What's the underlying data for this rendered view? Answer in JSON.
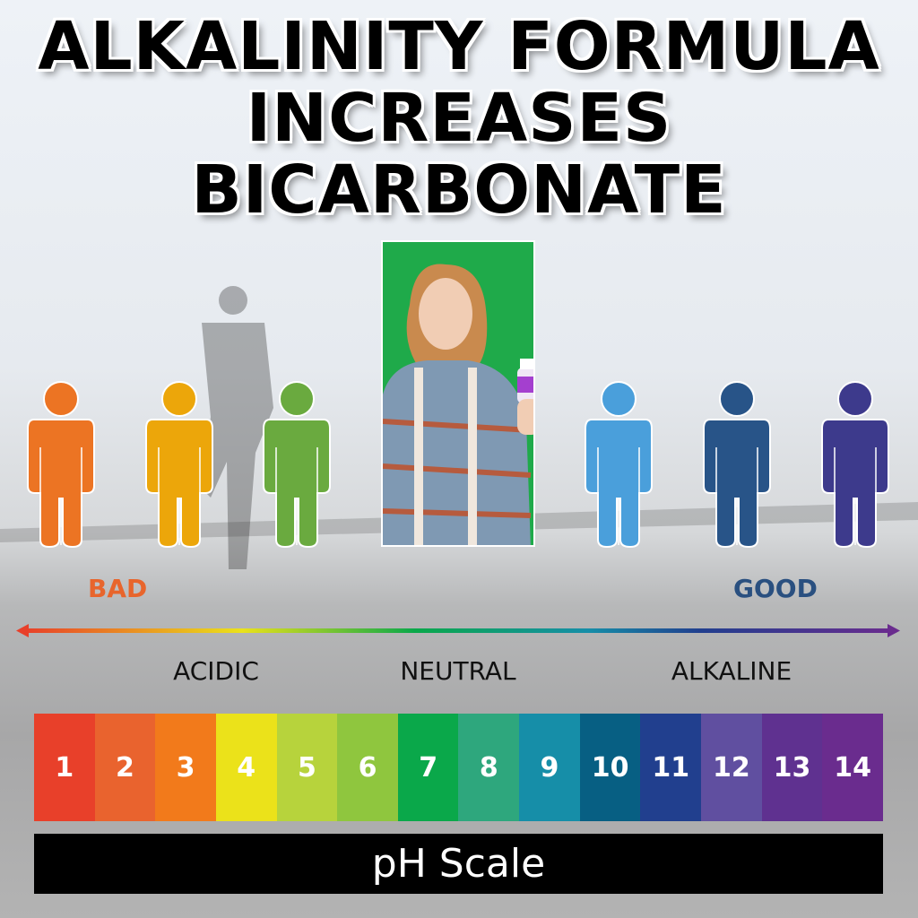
{
  "title": {
    "line1": "ALKALINITY FORMULA",
    "line2": "INCREASES",
    "line3": "BICARBONATE"
  },
  "figures": [
    {
      "color": "#ec7423"
    },
    {
      "color": "#eca60a"
    },
    {
      "color": "#6aaa3f"
    },
    {
      "color": "#4a9fdb"
    },
    {
      "color": "#285488"
    },
    {
      "color": "#3d3a8c"
    }
  ],
  "labels": {
    "bad": "BAD",
    "good": "GOOD",
    "bad_color": "#e8652c",
    "good_color": "#2a5080"
  },
  "zones": {
    "acidic": "ACIDIC",
    "neutral": "NEUTRAL",
    "alkaline": "ALKALINE"
  },
  "ph_scale": {
    "title": "pH Scale",
    "cells": [
      {
        "value": "1",
        "color": "#e8402a"
      },
      {
        "value": "2",
        "color": "#e9632e"
      },
      {
        "value": "3",
        "color": "#f27a1b"
      },
      {
        "value": "4",
        "color": "#ebe21a"
      },
      {
        "value": "5",
        "color": "#b7d33c"
      },
      {
        "value": "6",
        "color": "#8fc63e"
      },
      {
        "value": "7",
        "color": "#0aa84a"
      },
      {
        "value": "8",
        "color": "#2ea77d"
      },
      {
        "value": "9",
        "color": "#168ea8"
      },
      {
        "value": "10",
        "color": "#075f83"
      },
      {
        "value": "11",
        "color": "#213f8e"
      },
      {
        "value": "12",
        "color": "#604fa0"
      },
      {
        "value": "13",
        "color": "#5f3190"
      },
      {
        "value": "14",
        "color": "#6a2c8e"
      }
    ]
  }
}
